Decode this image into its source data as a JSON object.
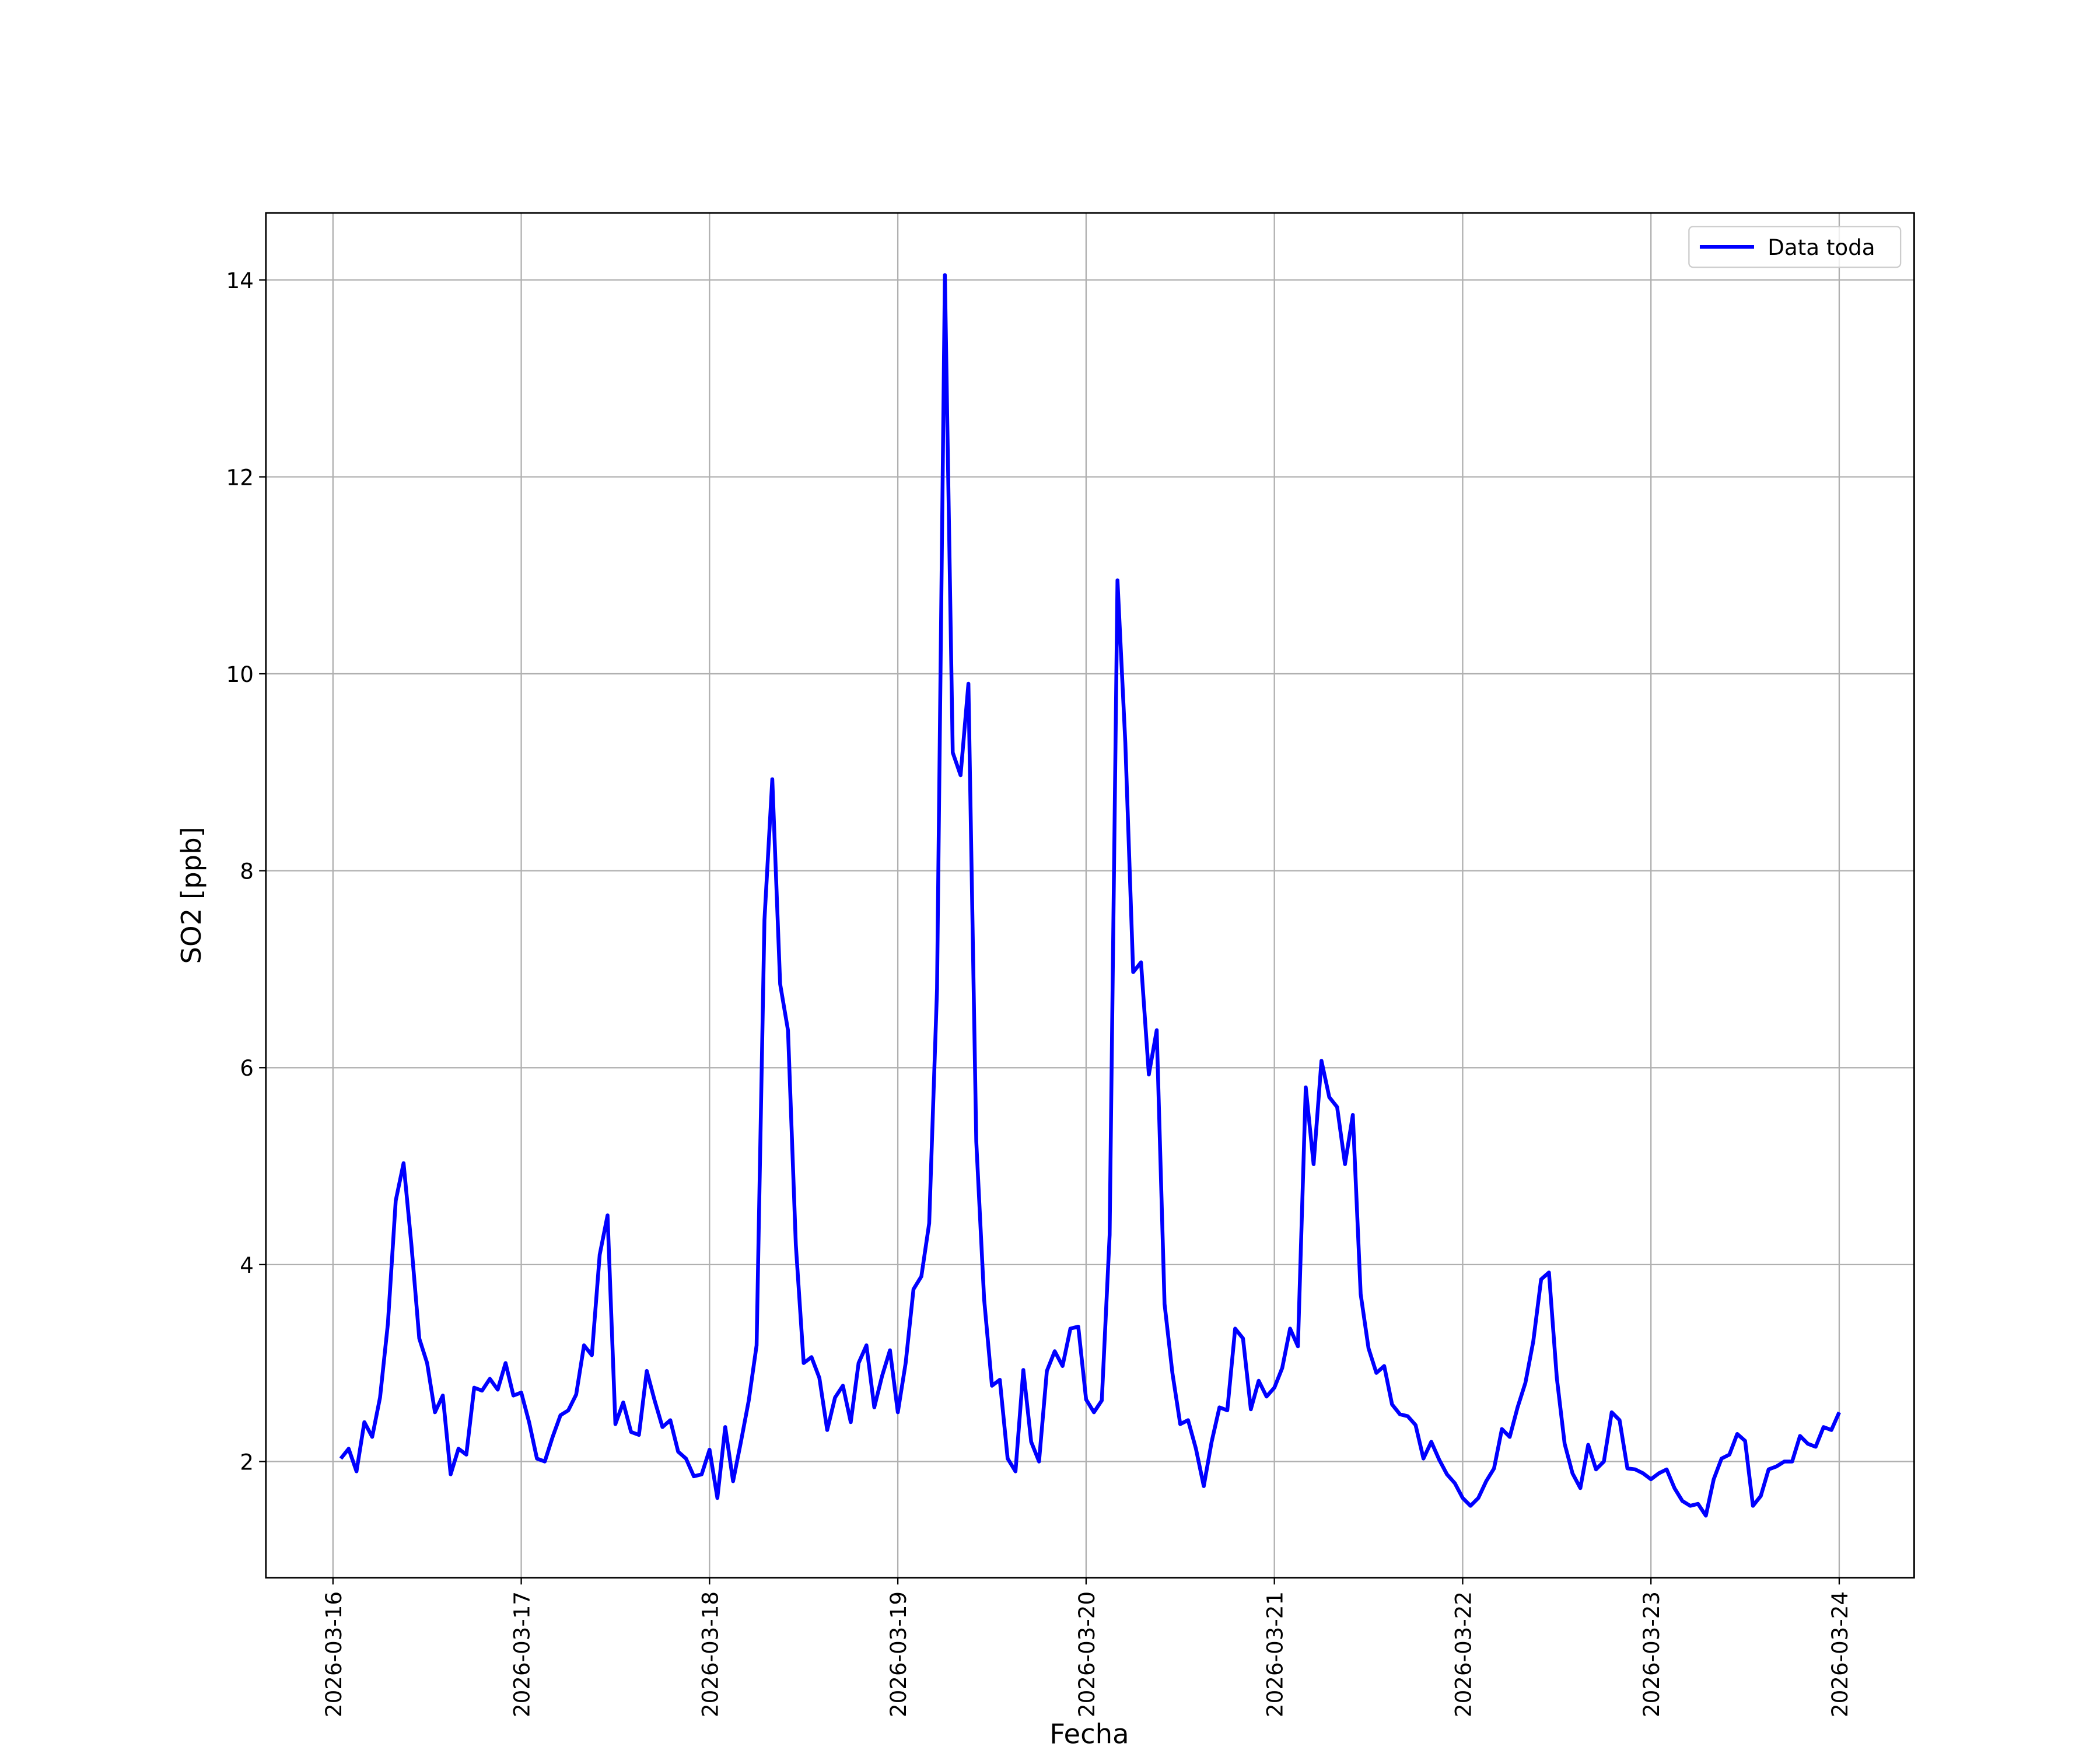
{
  "chart_data": {
    "type": "line",
    "xlabel": "Fecha",
    "ylabel": "SO2 [ppb]",
    "xticks": [
      "2026-03-16",
      "2026-03-17",
      "2026-03-18",
      "2026-03-19",
      "2026-03-20",
      "2026-03-21",
      "2026-03-22",
      "2026-03-23",
      "2026-03-24"
    ],
    "ylim": [
      0.82,
      14.68
    ],
    "yticks": [
      2,
      4,
      6,
      8,
      10,
      12,
      14
    ],
    "grid": true,
    "legend": "upper right",
    "series": [
      {
        "name": "Data toda",
        "color": "#0000ff",
        "values": [
          2.03,
          2.13,
          1.9,
          2.4,
          2.25,
          2.65,
          3.4,
          4.65,
          5.03,
          4.2,
          3.25,
          3.0,
          2.5,
          2.67,
          1.87,
          2.13,
          2.07,
          2.75,
          2.72,
          2.84,
          2.73,
          3.0,
          2.67,
          2.7,
          2.4,
          2.03,
          2.0,
          2.25,
          2.47,
          2.52,
          2.68,
          3.18,
          3.08,
          4.1,
          4.5,
          2.38,
          2.6,
          2.3,
          2.27,
          2.92,
          2.62,
          2.35,
          2.42,
          2.1,
          2.03,
          1.85,
          1.87,
          2.12,
          1.63,
          2.35,
          1.8,
          2.2,
          2.62,
          3.18,
          7.5,
          8.93,
          6.85,
          6.38,
          4.2,
          3.0,
          3.06,
          2.85,
          2.32,
          2.65,
          2.77,
          2.4,
          3.0,
          3.18,
          2.55,
          2.87,
          3.13,
          2.5,
          3.0,
          3.75,
          3.88,
          4.42,
          6.8,
          14.05,
          9.2,
          8.97,
          9.9,
          5.25,
          3.65,
          2.77,
          2.83,
          2.03,
          1.9,
          2.93,
          2.2,
          2.0,
          2.92,
          3.12,
          2.97,
          3.35,
          3.37,
          2.63,
          2.5,
          2.62,
          4.3,
          10.95,
          9.3,
          6.97,
          7.07,
          5.93,
          6.38,
          3.6,
          2.9,
          2.38,
          2.42,
          2.13,
          1.75,
          2.2,
          2.55,
          2.52,
          3.35,
          3.25,
          2.53,
          2.82,
          2.66,
          2.75,
          2.95,
          3.35,
          3.17,
          5.8,
          5.02,
          6.07,
          5.7,
          5.6,
          5.02,
          5.52,
          3.7,
          3.15,
          2.9,
          2.97,
          2.58,
          2.48,
          2.46,
          2.37,
          2.03,
          2.2,
          2.02,
          1.87,
          1.78,
          1.63,
          1.55,
          1.63,
          1.8,
          1.93,
          2.33,
          2.25,
          2.55,
          2.8,
          3.22,
          3.85,
          3.92,
          2.85,
          2.18,
          1.88,
          1.73,
          2.17,
          1.92,
          2.0,
          2.5,
          2.42,
          1.93,
          1.92,
          1.88,
          1.82,
          1.88,
          1.92,
          1.73,
          1.6,
          1.55,
          1.57,
          1.45,
          1.82,
          2.03,
          2.07,
          2.28,
          2.21,
          1.55,
          1.65,
          1.92,
          1.95,
          2.0,
          2.0,
          2.26,
          2.18,
          2.15,
          2.35,
          2.32,
          2.5
        ]
      }
    ]
  }
}
